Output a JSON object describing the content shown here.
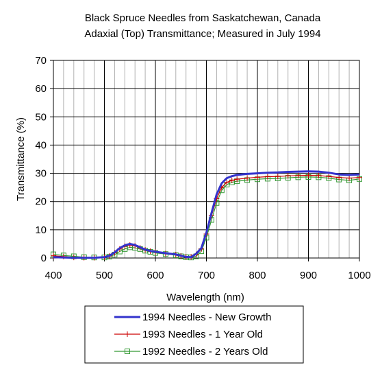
{
  "chart_data": {
    "type": "line",
    "title": [
      "Black Spruce Needles from Saskatchewan, Canada",
      "Adaxial (Top) Transmittance; Measured in July 1994"
    ],
    "xlabel": "Wavelength (nm)",
    "ylabel": "Transmittance (%)",
    "xlim": [
      400,
      1000
    ],
    "ylim": [
      0,
      70
    ],
    "xticks": [
      400,
      500,
      600,
      700,
      800,
      900,
      1000
    ],
    "yticks": [
      0,
      10,
      20,
      30,
      40,
      50,
      60,
      70
    ],
    "minor_x_grid_step": 20,
    "grid": true,
    "legend_position": "bottom",
    "series": [
      {
        "name": "1994 Needles - New Growth",
        "color": "#3333cc",
        "marker": "none",
        "x": [
          400,
          420,
          440,
          460,
          480,
          500,
          510,
          520,
          530,
          540,
          550,
          560,
          570,
          580,
          590,
          600,
          620,
          640,
          650,
          660,
          670,
          680,
          690,
          700,
          710,
          720,
          730,
          740,
          750,
          760,
          780,
          800,
          820,
          840,
          860,
          880,
          900,
          920,
          940,
          960,
          980,
          1000
        ],
        "y": [
          0.3,
          0.2,
          0.1,
          0.1,
          0.1,
          0.3,
          0.8,
          2.0,
          3.5,
          4.5,
          5.0,
          4.6,
          3.8,
          3.0,
          2.5,
          2.2,
          1.7,
          1.3,
          0.8,
          0.4,
          0.3,
          1.5,
          3.5,
          9.0,
          16.0,
          22.5,
          26.5,
          28.3,
          29.0,
          29.4,
          29.8,
          30.0,
          30.2,
          30.3,
          30.5,
          30.6,
          30.7,
          30.6,
          30.2,
          29.6,
          29.4,
          29.6
        ]
      },
      {
        "name": "1993 Needles - 1 Year Old",
        "color": "#cc0000",
        "marker": "plus",
        "x": [
          400,
          420,
          440,
          460,
          480,
          500,
          510,
          520,
          530,
          540,
          550,
          560,
          570,
          580,
          590,
          600,
          620,
          640,
          650,
          660,
          670,
          680,
          690,
          700,
          710,
          720,
          730,
          740,
          750,
          760,
          780,
          800,
          820,
          840,
          860,
          880,
          900,
          920,
          940,
          960,
          980,
          1000
        ],
        "y": [
          0.8,
          0.5,
          0.2,
          0.1,
          0.1,
          0.3,
          0.7,
          1.8,
          3.2,
          4.2,
          4.6,
          4.3,
          3.6,
          2.9,
          2.4,
          2.1,
          1.6,
          1.2,
          0.7,
          0.4,
          0.4,
          1.3,
          3.2,
          8.5,
          15.0,
          21.0,
          25.0,
          26.8,
          27.5,
          27.9,
          28.3,
          28.6,
          28.8,
          28.9,
          29.1,
          29.2,
          29.3,
          29.2,
          28.9,
          28.5,
          28.3,
          28.5
        ]
      },
      {
        "name": "1992 Needles - 2 Years Old",
        "color": "#339933",
        "marker": "square",
        "x": [
          400,
          420,
          440,
          460,
          480,
          500,
          510,
          520,
          530,
          540,
          550,
          560,
          570,
          580,
          590,
          600,
          620,
          640,
          650,
          660,
          670,
          680,
          690,
          700,
          710,
          720,
          730,
          740,
          750,
          760,
          780,
          800,
          820,
          840,
          860,
          880,
          900,
          920,
          940,
          960,
          980,
          1000
        ],
        "y": [
          1.3,
          0.9,
          0.6,
          0.3,
          0.2,
          0.2,
          0.5,
          1.2,
          2.3,
          3.2,
          3.8,
          3.6,
          3.2,
          2.6,
          2.2,
          1.8,
          1.4,
          1.0,
          0.6,
          0.3,
          0.2,
          0.6,
          2.4,
          7.2,
          13.5,
          19.5,
          24.0,
          26.0,
          26.8,
          27.2,
          27.6,
          27.9,
          28.1,
          28.2,
          28.4,
          28.6,
          28.7,
          28.6,
          28.3,
          27.8,
          27.5,
          28.0
        ]
      }
    ]
  }
}
